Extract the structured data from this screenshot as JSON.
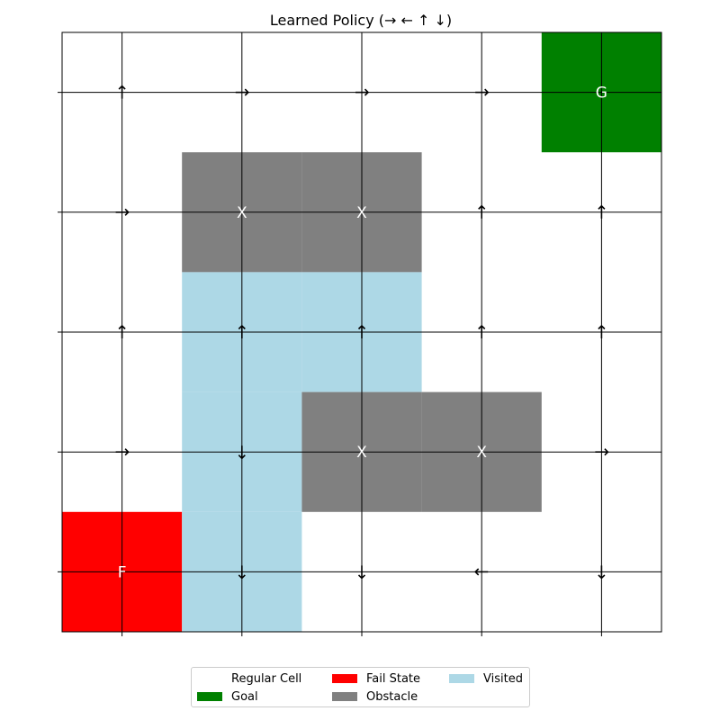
{
  "chart_data": {
    "type": "heatmap",
    "title": "Learned Policy (→ ← ↑ ↓)",
    "rows": 5,
    "cols": 5,
    "grid": true,
    "row_order": "top-to-bottom",
    "colors": {
      "regular": "#ffffff",
      "goal": "#008000",
      "fail": "#ff0000",
      "obstacle": "#808080",
      "visited": "#add8e6"
    },
    "goal_label": "G",
    "fail_label": "F",
    "obstacle_label": "X",
    "cells": [
      {
        "row": 0,
        "col": 4,
        "state": "goal"
      },
      {
        "row": 1,
        "col": 1,
        "state": "obstacle"
      },
      {
        "row": 1,
        "col": 2,
        "state": "obstacle"
      },
      {
        "row": 2,
        "col": 1,
        "state": "visited"
      },
      {
        "row": 2,
        "col": 2,
        "state": "visited"
      },
      {
        "row": 3,
        "col": 1,
        "state": "visited"
      },
      {
        "row": 3,
        "col": 2,
        "state": "obstacle"
      },
      {
        "row": 3,
        "col": 3,
        "state": "obstacle"
      },
      {
        "row": 4,
        "col": 0,
        "state": "fail"
      },
      {
        "row": 4,
        "col": 1,
        "state": "visited"
      }
    ],
    "policy": [
      {
        "row": 0,
        "col": 0,
        "action": "up"
      },
      {
        "row": 0,
        "col": 1,
        "action": "right"
      },
      {
        "row": 0,
        "col": 2,
        "action": "right"
      },
      {
        "row": 0,
        "col": 3,
        "action": "right"
      },
      {
        "row": 1,
        "col": 0,
        "action": "right"
      },
      {
        "row": 1,
        "col": 3,
        "action": "up"
      },
      {
        "row": 1,
        "col": 4,
        "action": "up"
      },
      {
        "row": 2,
        "col": 0,
        "action": "up"
      },
      {
        "row": 2,
        "col": 1,
        "action": "up"
      },
      {
        "row": 2,
        "col": 2,
        "action": "up"
      },
      {
        "row": 2,
        "col": 3,
        "action": "up"
      },
      {
        "row": 2,
        "col": 4,
        "action": "up"
      },
      {
        "row": 3,
        "col": 0,
        "action": "right"
      },
      {
        "row": 3,
        "col": 1,
        "action": "down"
      },
      {
        "row": 3,
        "col": 4,
        "action": "right"
      },
      {
        "row": 4,
        "col": 1,
        "action": "down"
      },
      {
        "row": 4,
        "col": 2,
        "action": "down"
      },
      {
        "row": 4,
        "col": 3,
        "action": "left"
      },
      {
        "row": 4,
        "col": 4,
        "action": "down"
      }
    ],
    "legend": {
      "placement": "bottom-center",
      "items": [
        {
          "label": "Regular Cell",
          "color": "#ffffff"
        },
        {
          "label": "Goal",
          "color": "#008000"
        },
        {
          "label": "Fail State",
          "color": "#ff0000"
        },
        {
          "label": "Obstacle",
          "color": "#808080"
        },
        {
          "label": "Visited",
          "color": "#add8e6"
        }
      ]
    }
  }
}
